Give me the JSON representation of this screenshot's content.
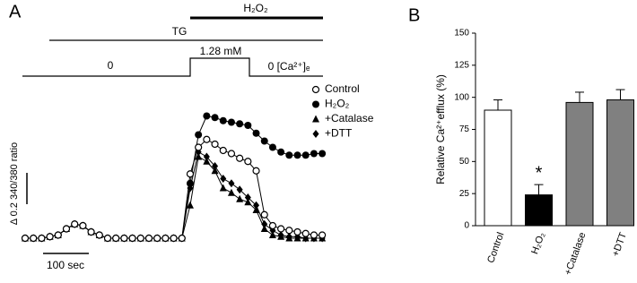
{
  "chart_data": [
    {
      "type": "line",
      "panel": "A",
      "annotations": [
        "H₂O₂",
        "TG",
        "0",
        "1.28 mM",
        "0 [Ca²⁺]ₑ",
        "Δ 0.2 340/380 ratio",
        "100 sec"
      ],
      "x": [
        0,
        18,
        36,
        54,
        72,
        90,
        108,
        126,
        144,
        162,
        180,
        198,
        216,
        234,
        252,
        270,
        288,
        306,
        324,
        342,
        360,
        378,
        396,
        414,
        432,
        450,
        468,
        486,
        504,
        522,
        540,
        558,
        576,
        594,
        612,
        630,
        648
      ],
      "series": [
        {
          "name": "Control",
          "color": "#000000",
          "marker": "open-circle",
          "values": [
            0,
            0,
            0,
            0.01,
            0.02,
            0.06,
            0.09,
            0.08,
            0.04,
            0.02,
            0,
            0,
            0,
            0,
            0,
            0,
            0,
            0,
            0,
            0,
            0.41,
            0.58,
            0.63,
            0.6,
            0.56,
            0.54,
            0.51,
            0.49,
            0.43,
            0.15,
            0.08,
            0.06,
            0.05,
            0.04,
            0.03,
            0.02,
            0.02
          ]
        },
        {
          "name": "H₂O₂",
          "color": "#000000",
          "marker": "circle",
          "values": [
            0,
            0,
            0,
            0.01,
            0.02,
            0.06,
            0.09,
            0.08,
            0.04,
            0.02,
            0,
            0,
            0,
            0,
            0,
            0,
            0,
            0,
            0,
            0,
            0.35,
            0.66,
            0.78,
            0.77,
            0.75,
            0.74,
            0.73,
            0.72,
            0.67,
            0.62,
            0.58,
            0.55,
            0.53,
            0.53,
            0.53,
            0.54,
            0.54
          ]
        },
        {
          "name": "+Catalase",
          "color": "#000000",
          "marker": "triangle",
          "values": [
            0,
            0,
            0,
            0.01,
            0.02,
            0.06,
            0.09,
            0.08,
            0.04,
            0.02,
            0,
            0,
            0,
            0,
            0,
            0,
            0,
            0,
            0,
            0,
            0.21,
            0.52,
            0.49,
            0.43,
            0.32,
            0.29,
            0.25,
            0.23,
            0.18,
            0.06,
            0.02,
            0.01,
            0,
            0,
            0,
            0,
            0
          ]
        },
        {
          "name": "+DTT",
          "color": "#000000",
          "marker": "diamond",
          "values": [
            0,
            0,
            0,
            0.01,
            0.02,
            0.06,
            0.09,
            0.08,
            0.04,
            0.02,
            0,
            0,
            0,
            0,
            0,
            0,
            0,
            0,
            0,
            0,
            0.32,
            0.55,
            0.52,
            0.46,
            0.38,
            0.35,
            0.31,
            0.26,
            0.21,
            0.09,
            0.05,
            0.02,
            0.01,
            0.01,
            0,
            0,
            0
          ]
        }
      ]
    },
    {
      "type": "bar",
      "panel": "B",
      "ylabel": "Relative Ca²⁺efflux (%)",
      "categories": [
        "Control",
        "H₂O₂",
        "+Catalase",
        "+DTT"
      ],
      "values": [
        90,
        24,
        96,
        98
      ],
      "errors": [
        8,
        8,
        8,
        8
      ],
      "colors": [
        "#ffffff",
        "#000000",
        "#808080",
        "#808080"
      ],
      "annotation": "*",
      "ylim": [
        0,
        150
      ],
      "yticks": [
        0,
        25,
        50,
        75,
        100,
        125,
        150
      ]
    }
  ]
}
